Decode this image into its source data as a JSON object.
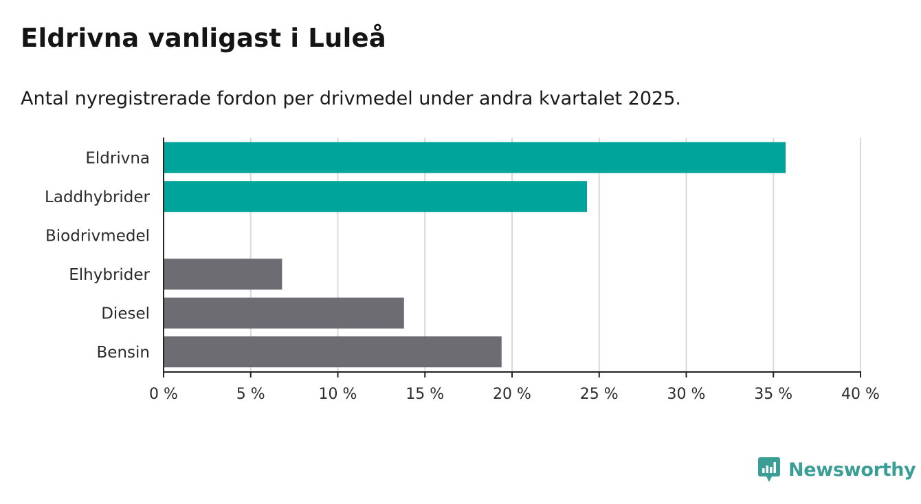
{
  "header": {
    "title": "Eldrivna vanligast i Luleå",
    "subtitle": "Antal nyregistrerade fordon per drivmedel under andra kvartalet 2025."
  },
  "brand": {
    "name": "Newsworthy",
    "icon": "newsworthy-logo-icon",
    "color": "#3a9e96"
  },
  "colors": {
    "highlight": "#00a49a",
    "base": "#6d6c72",
    "grid": "#d9d9d9",
    "axis": "#222222"
  },
  "chart_data": {
    "type": "bar",
    "orientation": "horizontal",
    "categories": [
      "Eldrivna",
      "Laddhybrider",
      "Biodrivmedel",
      "Elhybrider",
      "Diesel",
      "Bensin"
    ],
    "values": [
      35.7,
      24.3,
      0,
      6.8,
      13.8,
      19.4
    ],
    "bar_colors": [
      "#00a49a",
      "#00a49a",
      "#6d6c72",
      "#6d6c72",
      "#6d6c72",
      "#6d6c72"
    ],
    "xlim": [
      0,
      40
    ],
    "xticks": [
      0,
      5,
      10,
      15,
      20,
      25,
      30,
      35,
      40
    ],
    "xtick_labels": [
      "0 %",
      "5 %",
      "10 %",
      "15 %",
      "20 %",
      "25 %",
      "30 %",
      "35 %",
      "40 %"
    ],
    "unit": "%",
    "grid": true,
    "legend": "none"
  }
}
